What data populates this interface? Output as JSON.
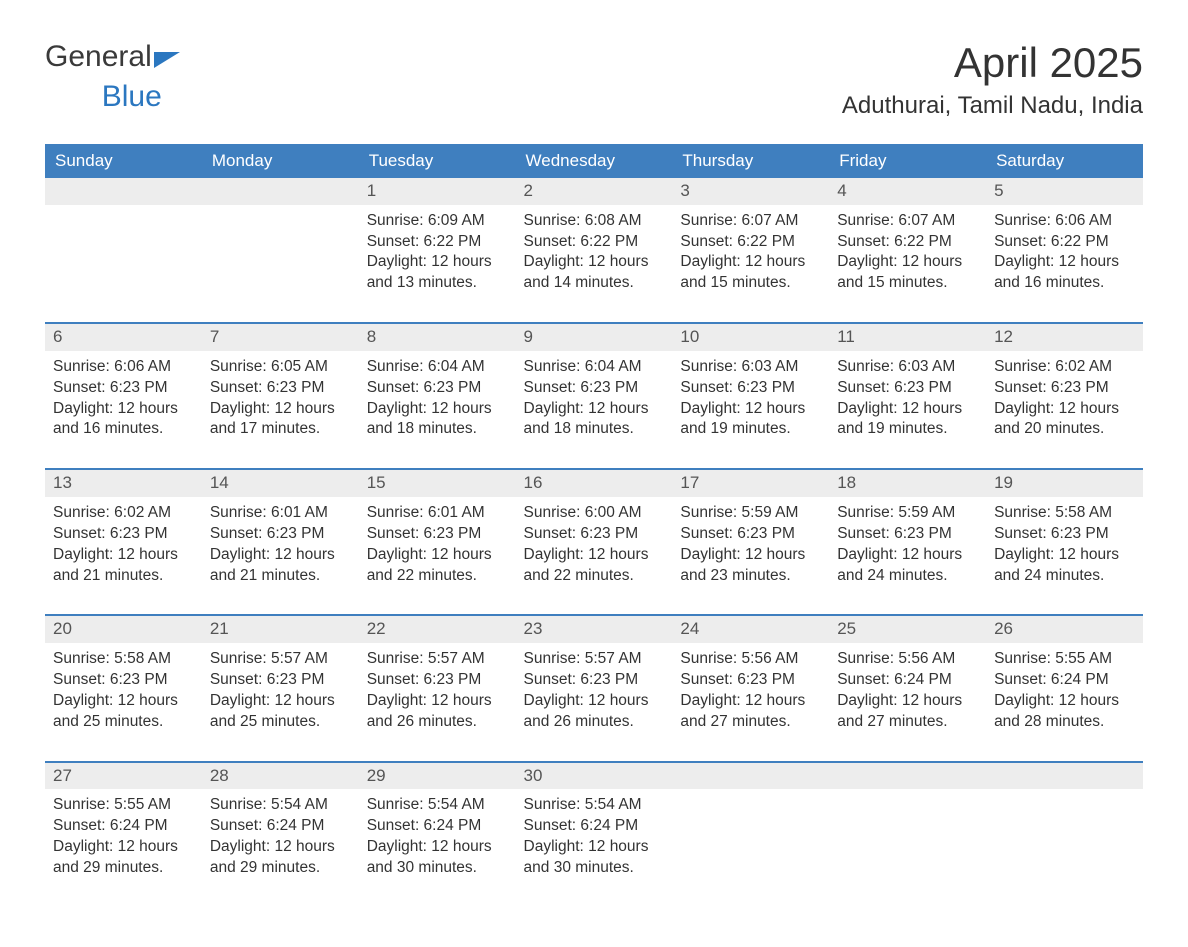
{
  "brand": {
    "part1": "General",
    "part2": "Blue"
  },
  "title": "April 2025",
  "location": "Aduthurai, Tamil Nadu, India",
  "colors": {
    "header_bg": "#3f7fbf",
    "header_text": "#ffffff",
    "daynum_bg": "#ededed",
    "daynum_text": "#555555",
    "body_text": "#333333",
    "row_divider": "#3f7fbf",
    "brand_gray": "#3a3a3a",
    "brand_blue": "#2b77c0",
    "page_bg": "#ffffff"
  },
  "layout": {
    "cols": 7,
    "title_fontsize": 42,
    "location_fontsize": 24,
    "dayhead_fontsize": 17,
    "body_fontsize": 15.5
  },
  "day_headers": [
    "Sunday",
    "Monday",
    "Tuesday",
    "Wednesday",
    "Thursday",
    "Friday",
    "Saturday"
  ],
  "weeks": [
    [
      null,
      null,
      {
        "num": "1",
        "sunrise": "6:09 AM",
        "sunset": "6:22 PM",
        "daylight": "12 hours and 13 minutes."
      },
      {
        "num": "2",
        "sunrise": "6:08 AM",
        "sunset": "6:22 PM",
        "daylight": "12 hours and 14 minutes."
      },
      {
        "num": "3",
        "sunrise": "6:07 AM",
        "sunset": "6:22 PM",
        "daylight": "12 hours and 15 minutes."
      },
      {
        "num": "4",
        "sunrise": "6:07 AM",
        "sunset": "6:22 PM",
        "daylight": "12 hours and 15 minutes."
      },
      {
        "num": "5",
        "sunrise": "6:06 AM",
        "sunset": "6:22 PM",
        "daylight": "12 hours and 16 minutes."
      }
    ],
    [
      {
        "num": "6",
        "sunrise": "6:06 AM",
        "sunset": "6:23 PM",
        "daylight": "12 hours and 16 minutes."
      },
      {
        "num": "7",
        "sunrise": "6:05 AM",
        "sunset": "6:23 PM",
        "daylight": "12 hours and 17 minutes."
      },
      {
        "num": "8",
        "sunrise": "6:04 AM",
        "sunset": "6:23 PM",
        "daylight": "12 hours and 18 minutes."
      },
      {
        "num": "9",
        "sunrise": "6:04 AM",
        "sunset": "6:23 PM",
        "daylight": "12 hours and 18 minutes."
      },
      {
        "num": "10",
        "sunrise": "6:03 AM",
        "sunset": "6:23 PM",
        "daylight": "12 hours and 19 minutes."
      },
      {
        "num": "11",
        "sunrise": "6:03 AM",
        "sunset": "6:23 PM",
        "daylight": "12 hours and 19 minutes."
      },
      {
        "num": "12",
        "sunrise": "6:02 AM",
        "sunset": "6:23 PM",
        "daylight": "12 hours and 20 minutes."
      }
    ],
    [
      {
        "num": "13",
        "sunrise": "6:02 AM",
        "sunset": "6:23 PM",
        "daylight": "12 hours and 21 minutes."
      },
      {
        "num": "14",
        "sunrise": "6:01 AM",
        "sunset": "6:23 PM",
        "daylight": "12 hours and 21 minutes."
      },
      {
        "num": "15",
        "sunrise": "6:01 AM",
        "sunset": "6:23 PM",
        "daylight": "12 hours and 22 minutes."
      },
      {
        "num": "16",
        "sunrise": "6:00 AM",
        "sunset": "6:23 PM",
        "daylight": "12 hours and 22 minutes."
      },
      {
        "num": "17",
        "sunrise": "5:59 AM",
        "sunset": "6:23 PM",
        "daylight": "12 hours and 23 minutes."
      },
      {
        "num": "18",
        "sunrise": "5:59 AM",
        "sunset": "6:23 PM",
        "daylight": "12 hours and 24 minutes."
      },
      {
        "num": "19",
        "sunrise": "5:58 AM",
        "sunset": "6:23 PM",
        "daylight": "12 hours and 24 minutes."
      }
    ],
    [
      {
        "num": "20",
        "sunrise": "5:58 AM",
        "sunset": "6:23 PM",
        "daylight": "12 hours and 25 minutes."
      },
      {
        "num": "21",
        "sunrise": "5:57 AM",
        "sunset": "6:23 PM",
        "daylight": "12 hours and 25 minutes."
      },
      {
        "num": "22",
        "sunrise": "5:57 AM",
        "sunset": "6:23 PM",
        "daylight": "12 hours and 26 minutes."
      },
      {
        "num": "23",
        "sunrise": "5:57 AM",
        "sunset": "6:23 PM",
        "daylight": "12 hours and 26 minutes."
      },
      {
        "num": "24",
        "sunrise": "5:56 AM",
        "sunset": "6:23 PM",
        "daylight": "12 hours and 27 minutes."
      },
      {
        "num": "25",
        "sunrise": "5:56 AM",
        "sunset": "6:24 PM",
        "daylight": "12 hours and 27 minutes."
      },
      {
        "num": "26",
        "sunrise": "5:55 AM",
        "sunset": "6:24 PM",
        "daylight": "12 hours and 28 minutes."
      }
    ],
    [
      {
        "num": "27",
        "sunrise": "5:55 AM",
        "sunset": "6:24 PM",
        "daylight": "12 hours and 29 minutes."
      },
      {
        "num": "28",
        "sunrise": "5:54 AM",
        "sunset": "6:24 PM",
        "daylight": "12 hours and 29 minutes."
      },
      {
        "num": "29",
        "sunrise": "5:54 AM",
        "sunset": "6:24 PM",
        "daylight": "12 hours and 30 minutes."
      },
      {
        "num": "30",
        "sunrise": "5:54 AM",
        "sunset": "6:24 PM",
        "daylight": "12 hours and 30 minutes."
      },
      null,
      null,
      null
    ]
  ],
  "labels": {
    "sunrise": "Sunrise: ",
    "sunset": "Sunset: ",
    "daylight": "Daylight: "
  }
}
